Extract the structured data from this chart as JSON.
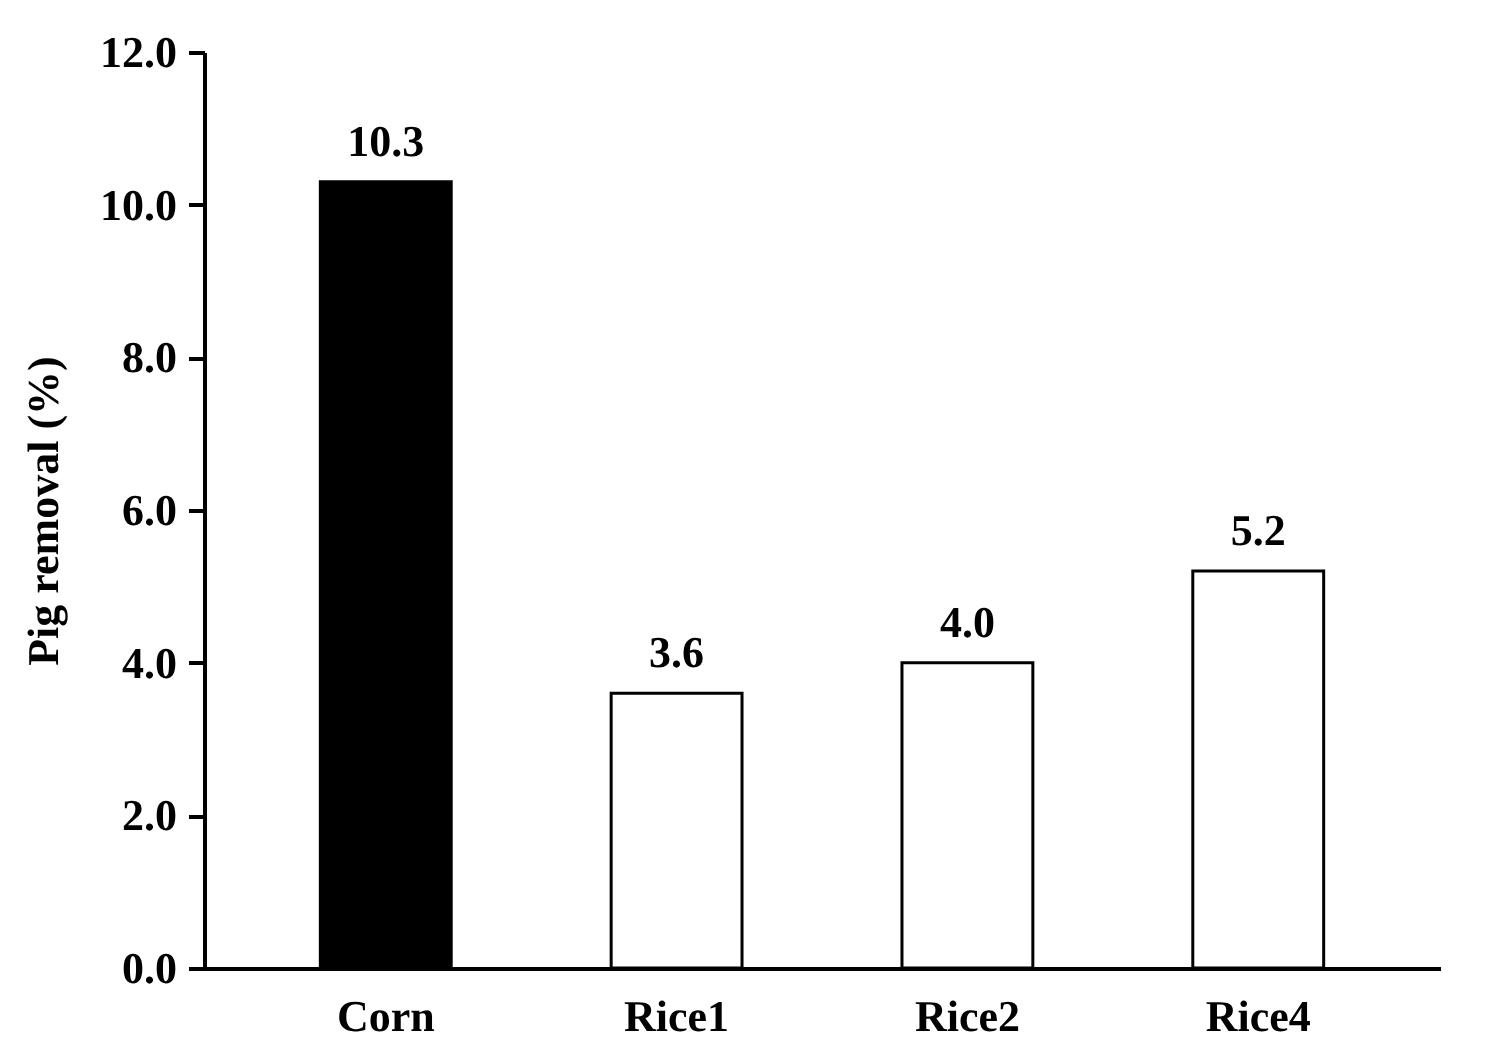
{
  "chart_data": {
    "type": "bar",
    "ylabel": "Pig removal (%)",
    "categories": [
      "Corn",
      "Rice1",
      "Rice2",
      "Rice4"
    ],
    "values": [
      10.3,
      3.6,
      4.0,
      5.2
    ],
    "colors": [
      "#000000",
      "#ffffff",
      "#ffffff",
      "#ffffff"
    ],
    "value_labels": [
      "10.3",
      "3.6",
      "4.0",
      "5.2"
    ],
    "ylim": [
      0,
      12
    ],
    "yticks": [
      {
        "value": 0,
        "label": "0.0"
      },
      {
        "value": 2,
        "label": "2.0"
      },
      {
        "value": 4,
        "label": "4.0"
      },
      {
        "value": 6,
        "label": "6.0"
      },
      {
        "value": 8,
        "label": "8.0"
      },
      {
        "value": 10,
        "label": "10.0"
      },
      {
        "value": 12,
        "label": "12.0"
      }
    ],
    "grid": false
  }
}
